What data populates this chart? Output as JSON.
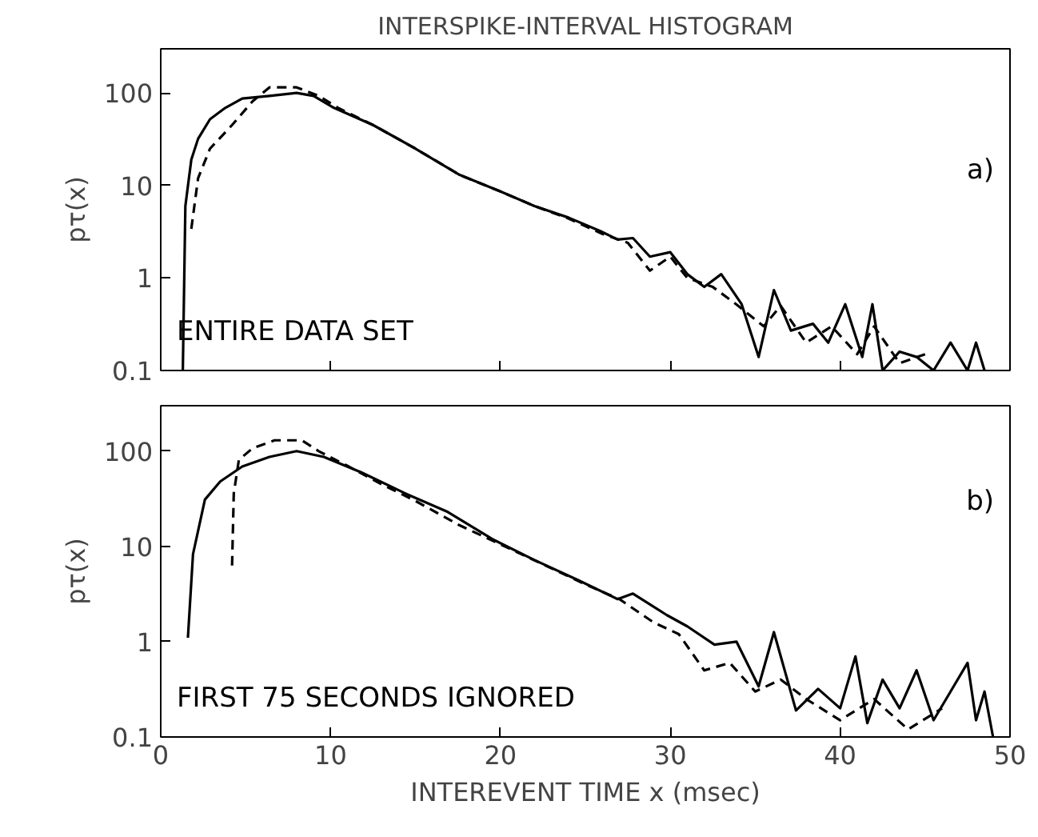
{
  "chart_data": [
    {
      "type": "line",
      "title": "INTERSPIKE-INTERVAL HISTOGRAM",
      "ylabel": "pτ(x)",
      "log": "y",
      "xlim": [
        0,
        50
      ],
      "xticks": [
        0,
        10,
        20,
        30,
        40,
        50
      ],
      "ylim": [
        0.1,
        300
      ],
      "yticks": [
        0.1,
        1,
        10,
        100
      ],
      "tick_labels": "y",
      "grid": false,
      "annotations": [
        "a)",
        "ENTIRE DATA SET"
      ],
      "series": [
        {
          "color": "#000000",
          "line_style": "solid",
          "x": [
            1.3,
            1.45,
            1.8,
            2.2,
            2.9,
            3.8,
            4.8,
            6.4,
            8,
            9,
            10.2,
            12.5,
            15,
            17.6,
            20,
            22,
            24,
            25.9,
            26.9,
            27.8,
            28.8,
            30,
            31,
            32,
            33,
            34.2,
            35.2,
            36.1,
            37.1,
            38.4,
            39.3,
            40.3,
            41.3,
            41.9,
            42.5,
            43.5,
            44.5,
            45.5,
            46.5,
            47.5,
            48,
            48.5
          ],
          "values": [
            0.1,
            6,
            19,
            32,
            52,
            69,
            87,
            93,
            100,
            93,
            69,
            45,
            25,
            13,
            8.6,
            6,
            4.5,
            3.2,
            2.6,
            2.7,
            1.7,
            1.9,
            1.1,
            0.8,
            1.1,
            0.52,
            0.14,
            0.74,
            0.27,
            0.32,
            0.2,
            0.52,
            0.14,
            0.52,
            0.1,
            0.16,
            0.14,
            0.1,
            0.2,
            0.1,
            0.2,
            0.1
          ]
        },
        {
          "color": "#000000",
          "line_style": "dashed",
          "x": [
            1.8,
            2.2,
            2.9,
            4.2,
            5.4,
            6.4,
            8,
            9.3,
            10.5,
            12.5,
            15,
            17.6,
            20,
            22,
            24,
            26,
            27.5,
            28.8,
            30,
            31,
            32.5,
            34,
            35.5,
            36.5,
            38,
            39.5,
            41,
            42,
            43.5,
            45
          ],
          "values": [
            3.4,
            12,
            25,
            45,
            81,
            115,
            115,
            93,
            68,
            45,
            25,
            13,
            8.6,
            6,
            4.4,
            3,
            2.4,
            1.2,
            1.7,
            1,
            0.8,
            0.5,
            0.3,
            0.5,
            0.2,
            0.3,
            0.15,
            0.3,
            0.12,
            0.15
          ]
        }
      ]
    },
    {
      "type": "line",
      "xlabel": "INTEREVENT TIME x (msec)",
      "ylabel": "pτ(x)",
      "log": "y",
      "xlim": [
        0,
        50
      ],
      "xticks": [
        0,
        10,
        20,
        30,
        40,
        50
      ],
      "ylim": [
        0.1,
        300
      ],
      "yticks": [
        0.1,
        1,
        10,
        100
      ],
      "grid": false,
      "annotations": [
        "b)",
        "FIRST 75 SECONDS IGNORED"
      ],
      "series": [
        {
          "color": "#000000",
          "line_style": "solid",
          "x": [
            1.6,
            1.9,
            2.6,
            3.5,
            4.8,
            6.4,
            8,
            9.6,
            11.8,
            14.4,
            16.9,
            19.5,
            22,
            24.6,
            26.9,
            27.8,
            29.8,
            31,
            32.6,
            33.9,
            35.2,
            36.1,
            37.4,
            38.7,
            40,
            40.9,
            41.6,
            42.5,
            43.5,
            44.5,
            45.5,
            46.5,
            47.5,
            48,
            48.5,
            49
          ],
          "values": [
            1.1,
            8.3,
            31,
            48,
            69,
            87,
            100,
            87,
            60,
            36,
            23,
            12,
            7.2,
            4.4,
            2.8,
            3.2,
            1.9,
            1.45,
            0.93,
            1,
            0.34,
            1.26,
            0.19,
            0.32,
            0.2,
            0.7,
            0.14,
            0.4,
            0.2,
            0.5,
            0.15,
            0.3,
            0.6,
            0.15,
            0.3,
            0.1
          ]
        },
        {
          "color": "#000000",
          "line_style": "dashed",
          "x": [
            4.2,
            4.3,
            4.6,
            5.4,
            6.7,
            8.3,
            9.3,
            11,
            13,
            15,
            17.5,
            20,
            22.5,
            25,
            27,
            29,
            30.5,
            32,
            33.5,
            35,
            36.5,
            38,
            40,
            42,
            44,
            46
          ],
          "values": [
            6.3,
            36,
            81,
            107,
            130,
            130,
            100,
            70,
            45,
            30,
            17,
            10.5,
            6.5,
            4,
            2.8,
            1.6,
            1.2,
            0.5,
            0.6,
            0.3,
            0.4,
            0.25,
            0.15,
            0.25,
            0.12,
            0.2
          ]
        }
      ]
    }
  ]
}
